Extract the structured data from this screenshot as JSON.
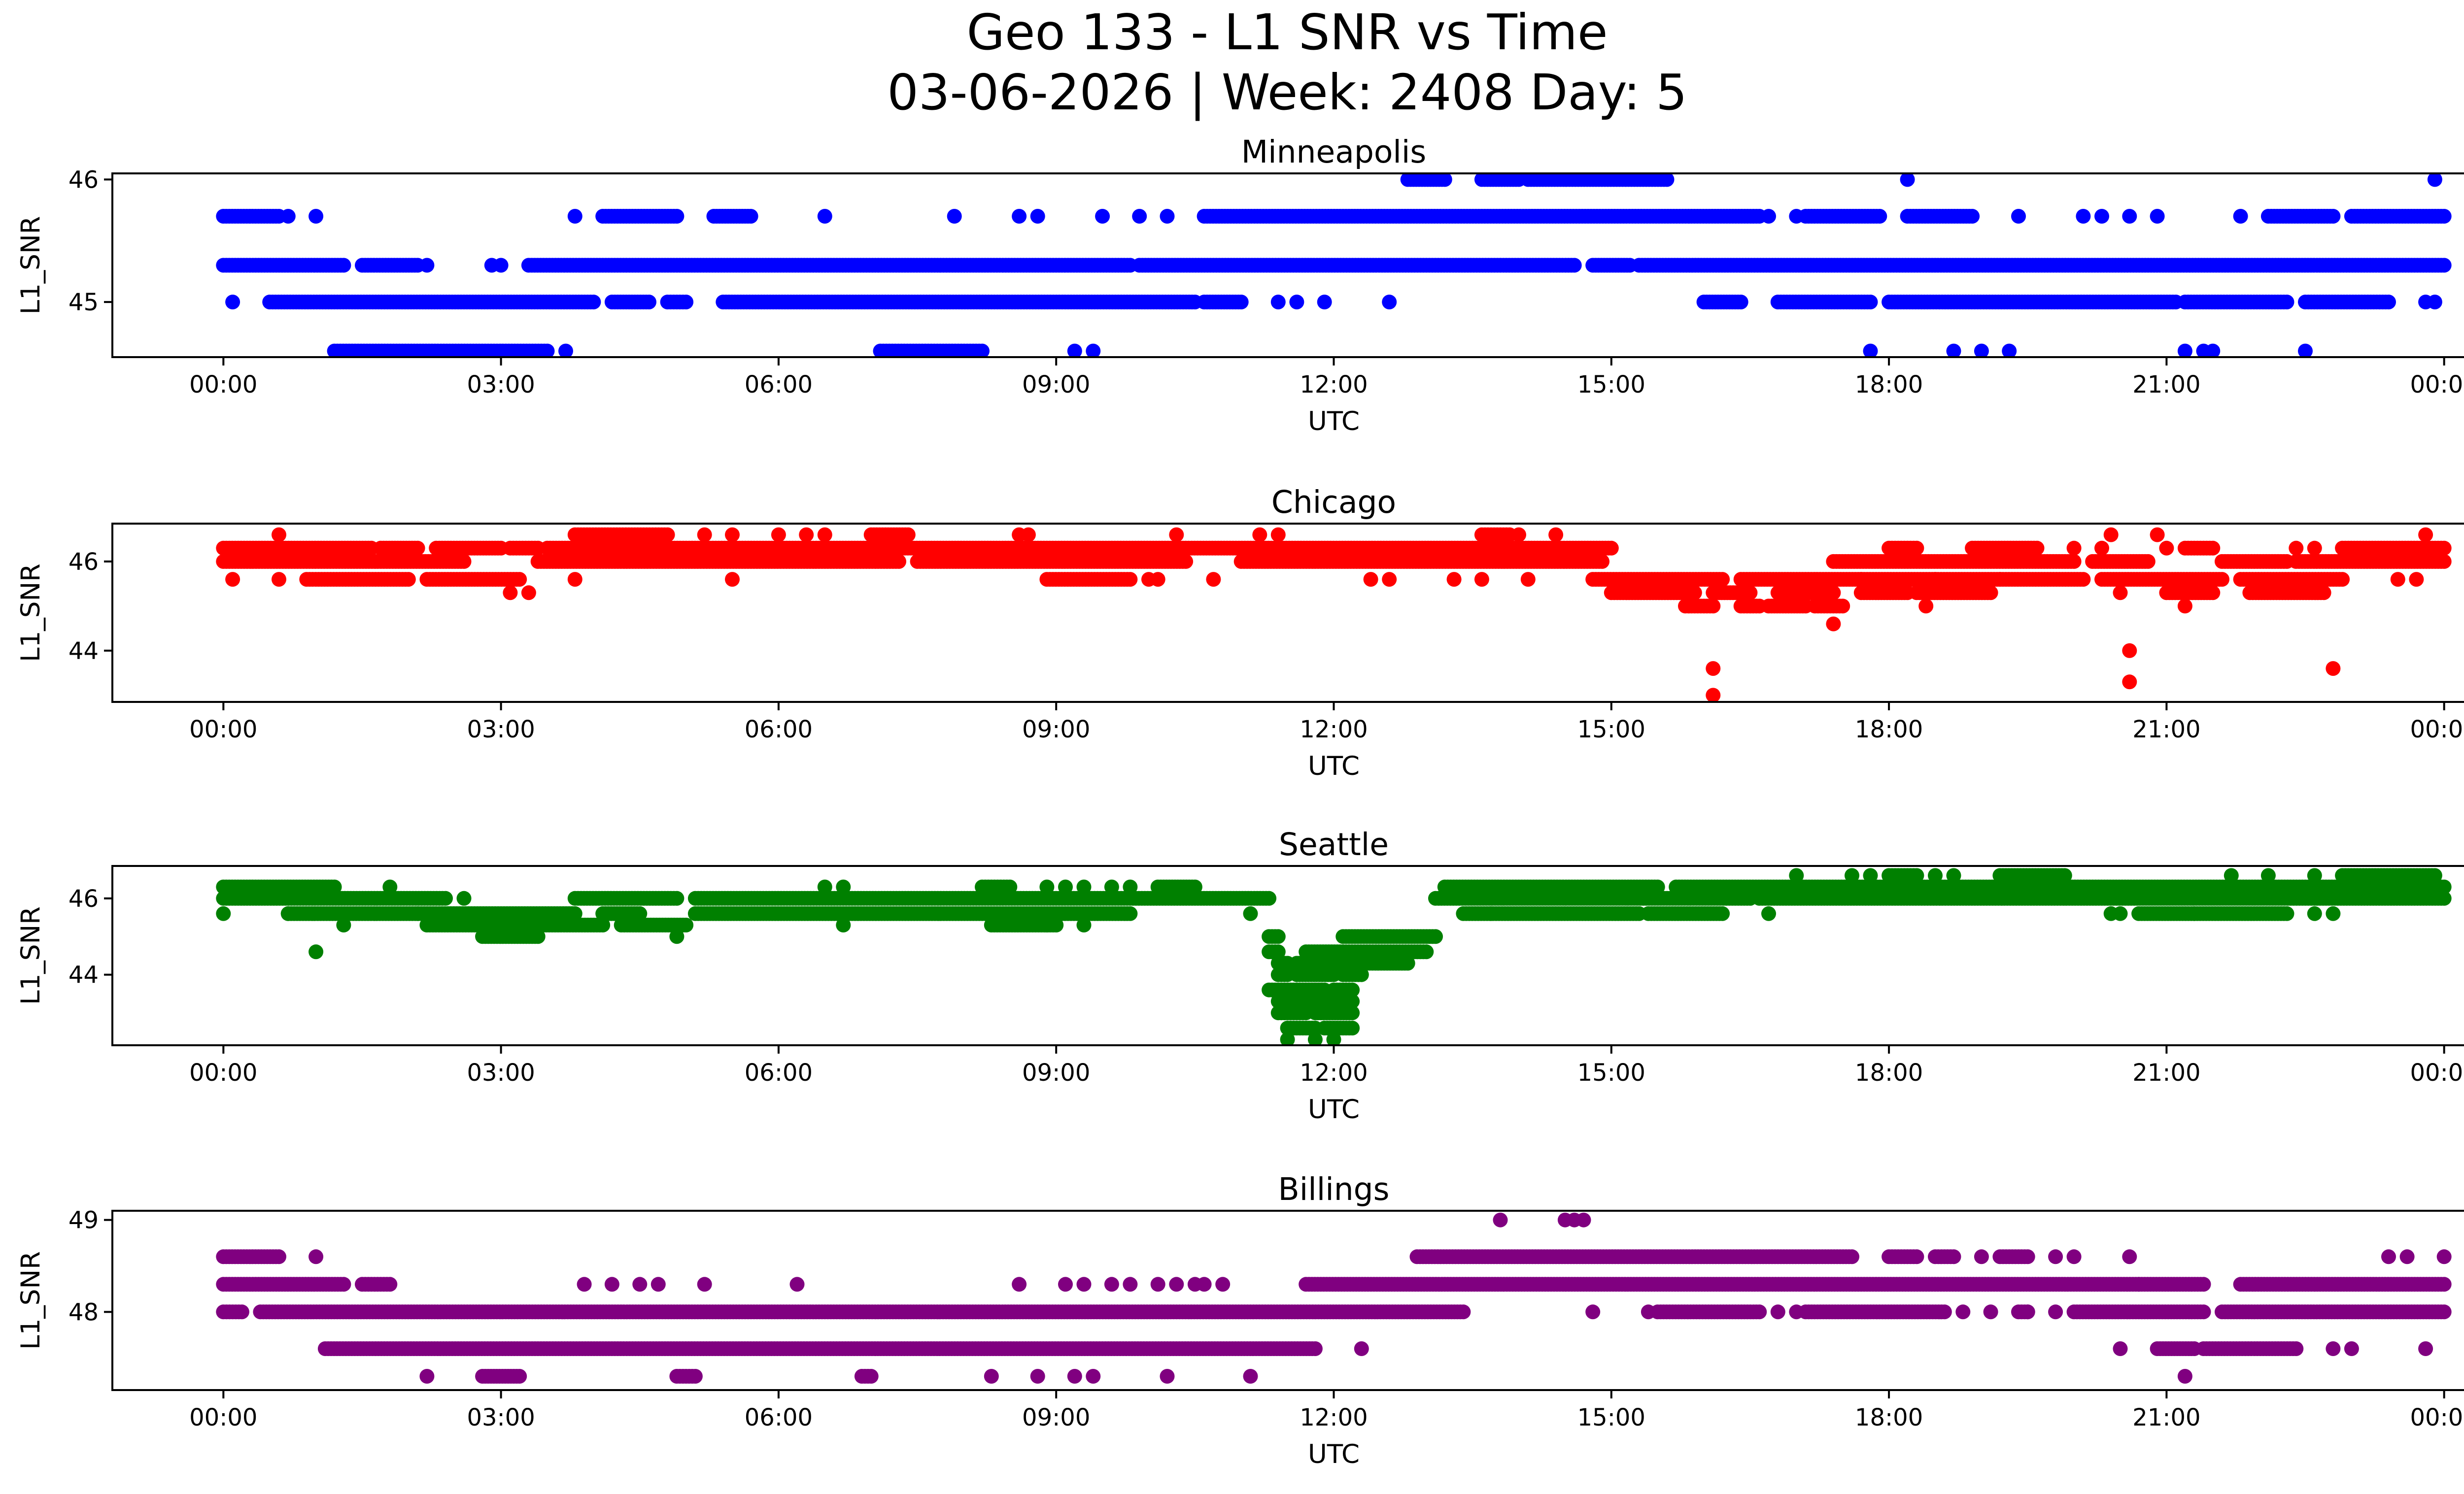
{
  "figure": {
    "title_line1": "Geo 133 - L1 SNR vs Time",
    "title_line2": "03-06-2026 | Week: 2408 Day: 5"
  },
  "chart_data": [
    {
      "type": "scatter",
      "title": "Minneapolis",
      "xlabel": "UTC",
      "ylabel": "L1_SNR",
      "color": "#0000ff",
      "xlim_hours": [
        -1.2,
        25.2
      ],
      "ylim": [
        44.55,
        46.05
      ],
      "x_ticks": [
        "00:00",
        "03:00",
        "06:00",
        "09:00",
        "12:00",
        "15:00",
        "18:00",
        "21:00",
        "00:00"
      ],
      "y_ticks": [
        45,
        46
      ],
      "y_tick_labels": [
        "45",
        "46"
      ],
      "series": [
        {
          "name": "SNR 46.0",
          "y": 46.0,
          "ranges": [
            [
              12.8,
              13.2
            ],
            [
              13.6,
              14.0
            ],
            [
              14.1,
              15.6
            ]
          ],
          "points": [
            18.2,
            23.9
          ]
        },
        {
          "name": "SNR 45.7",
          "y": 45.7,
          "ranges": [
            [
              0.0,
              0.6
            ],
            [
              4.1,
              4.9
            ],
            [
              5.3,
              5.7
            ],
            [
              10.6,
              16.6
            ],
            [
              17.1,
              17.9
            ],
            [
              18.2,
              18.9
            ],
            [
              22.1,
              22.8
            ],
            [
              23.0,
              24.0
            ]
          ],
          "points": [
            0.7,
            1.0,
            3.8,
            6.5,
            7.9,
            8.6,
            8.8,
            9.5,
            9.9,
            10.2,
            16.7,
            17.0,
            19.4,
            20.1,
            20.3,
            20.6,
            20.9,
            21.8
          ]
        },
        {
          "name": "SNR 45.3",
          "y": 45.3,
          "ranges": [
            [
              0.0,
              1.3
            ],
            [
              1.5,
              2.1
            ],
            [
              3.3,
              9.8
            ],
            [
              9.9,
              14.6
            ],
            [
              14.8,
              15.2
            ],
            [
              15.3,
              24.0
            ]
          ],
          "points": [
            2.2,
            2.9,
            3.0
          ]
        },
        {
          "name": "SNR 45.0",
          "y": 45.0,
          "ranges": [
            [
              0.5,
              4.0
            ],
            [
              4.2,
              4.6
            ],
            [
              4.8,
              5.0
            ],
            [
              5.4,
              10.5
            ],
            [
              10.6,
              11.0
            ],
            [
              16.0,
              16.4
            ],
            [
              16.8,
              17.8
            ],
            [
              18.0,
              21.1
            ],
            [
              21.2,
              22.3
            ],
            [
              22.5,
              23.4
            ]
          ],
          "points": [
            0.1,
            11.4,
            11.6,
            11.9,
            12.6,
            23.8,
            23.9
          ]
        },
        {
          "name": "SNR 44.6",
          "y": 44.6,
          "ranges": [
            [
              1.2,
              3.5
            ],
            [
              7.1,
              8.2
            ]
          ],
          "points": [
            3.7,
            9.2,
            9.4,
            17.8,
            18.7,
            19.0,
            19.3,
            21.2,
            21.4,
            21.5,
            22.5
          ]
        }
      ]
    },
    {
      "type": "scatter",
      "title": "Chicago",
      "xlabel": "UTC",
      "ylabel": "L1_SNR",
      "color": "#ff0000",
      "xlim_hours": [
        -1.2,
        25.2
      ],
      "ylim": [
        42.85,
        46.85
      ],
      "x_ticks": [
        "00:00",
        "03:00",
        "06:00",
        "09:00",
        "12:00",
        "15:00",
        "18:00",
        "21:00",
        "00:00"
      ],
      "y_ticks": [
        44,
        46
      ],
      "y_tick_labels": [
        "44",
        "46"
      ],
      "series": [
        {
          "name": "SNR 46.6",
          "y": 46.6,
          "ranges": [
            [
              3.8,
              4.8
            ],
            [
              13.6,
              13.9
            ],
            [
              7.0,
              7.4
            ]
          ],
          "points": [
            0.6,
            5.2,
            5.5,
            6.0,
            6.3,
            6.5,
            8.6,
            8.7,
            10.3,
            11.2,
            11.4,
            14.0,
            14.4,
            20.4,
            20.9,
            23.8
          ]
        },
        {
          "name": "SNR 46.3",
          "y": 46.3,
          "ranges": [
            [
              0.0,
              1.6
            ],
            [
              1.7,
              2.1
            ],
            [
              2.3,
              3.0
            ],
            [
              3.1,
              3.4
            ],
            [
              3.5,
              15.0
            ],
            [
              18.0,
              18.3
            ],
            [
              18.9,
              19.6
            ],
            [
              21.2,
              21.5
            ],
            [
              22.9,
              24.0
            ]
          ],
          "points": [
            20.0,
            20.3,
            21.0,
            22.4,
            22.6
          ]
        },
        {
          "name": "SNR 46.0",
          "y": 46.0,
          "ranges": [
            [
              0.0,
              2.6
            ],
            [
              3.4,
              7.3
            ],
            [
              7.5,
              10.4
            ],
            [
              11.0,
              14.9
            ],
            [
              17.4,
              20.0
            ],
            [
              20.2,
              20.8
            ],
            [
              21.6,
              22.3
            ],
            [
              22.4,
              24.0
            ]
          ],
          "points": []
        },
        {
          "name": "SNR 45.6",
          "y": 45.6,
          "ranges": [
            [
              0.9,
              2.0
            ],
            [
              2.2,
              3.2
            ],
            [
              8.9,
              9.8
            ],
            [
              14.8,
              16.2
            ],
            [
              16.4,
              17.7
            ],
            [
              17.7,
              18.5
            ],
            [
              18.5,
              19.2
            ],
            [
              19.2,
              20.1
            ],
            [
              20.3,
              21.6
            ],
            [
              21.8,
              22.9
            ]
          ],
          "points": [
            0.1,
            0.6,
            3.8,
            5.5,
            10.0,
            10.1,
            10.7,
            12.4,
            12.6,
            13.3,
            13.6,
            14.1,
            23.5,
            23.7
          ]
        },
        {
          "name": "SNR 45.3",
          "y": 45.3,
          "ranges": [
            [
              15.0,
              15.9
            ],
            [
              16.1,
              16.5
            ],
            [
              16.8,
              17.4
            ],
            [
              17.7,
              18.2
            ],
            [
              18.3,
              19.1
            ],
            [
              21.0,
              21.5
            ],
            [
              21.9,
              22.7
            ]
          ],
          "points": [
            3.1,
            3.3,
            20.5
          ]
        },
        {
          "name": "SNR 45.0",
          "y": 45.0,
          "ranges": [
            [
              15.8,
              16.1
            ],
            [
              16.4,
              16.6
            ],
            [
              16.7,
              17.1
            ],
            [
              17.2,
              17.5
            ]
          ],
          "points": [
            18.4,
            21.2
          ]
        },
        {
          "name": "SNR 44.6",
          "y": 44.6,
          "ranges": [],
          "points": [
            17.4
          ]
        },
        {
          "name": "SNR 44.0",
          "y": 44.0,
          "ranges": [],
          "points": [
            20.6
          ]
        },
        {
          "name": "SNR 43.6",
          "y": 43.6,
          "ranges": [],
          "points": [
            16.1,
            22.8
          ]
        },
        {
          "name": "SNR 43.3",
          "y": 43.3,
          "ranges": [],
          "points": [
            20.6
          ]
        },
        {
          "name": "SNR 43.0",
          "y": 43.0,
          "ranges": [],
          "points": [
            16.1
          ]
        }
      ]
    },
    {
      "type": "scatter",
      "title": "Seattle",
      "xlabel": "UTC",
      "ylabel": "L1_SNR",
      "color": "#008000",
      "xlim_hours": [
        -1.2,
        25.2
      ],
      "ylim": [
        42.15,
        46.85
      ],
      "x_ticks": [
        "00:00",
        "03:00",
        "06:00",
        "09:00",
        "12:00",
        "15:00",
        "18:00",
        "21:00",
        "00:00"
      ],
      "y_ticks": [
        44,
        46
      ],
      "y_tick_labels": [
        "44",
        "46"
      ],
      "series": [
        {
          "name": "SNR 46.6",
          "y": 46.6,
          "ranges": [
            [
              18.0,
              18.3
            ],
            [
              19.2,
              19.9
            ],
            [
              22.9,
              23.9
            ]
          ],
          "points": [
            17.0,
            17.6,
            17.8,
            18.5,
            18.7,
            21.7,
            22.1,
            22.6
          ]
        },
        {
          "name": "SNR 46.3",
          "y": 46.3,
          "ranges": [
            [
              0.0,
              1.2
            ],
            [
              8.2,
              8.5
            ],
            [
              10.1,
              10.5
            ],
            [
              13.2,
              15.5
            ],
            [
              15.7,
              24.0
            ]
          ],
          "points": [
            1.8,
            6.5,
            6.7,
            8.9,
            9.1,
            9.3,
            9.6,
            9.8
          ]
        },
        {
          "name": "SNR 46.0",
          "y": 46.0,
          "ranges": [
            [
              0.0,
              2.4
            ],
            [
              3.8,
              4.9
            ],
            [
              5.1,
              11.3
            ],
            [
              13.1,
              16.5
            ],
            [
              16.6,
              24.0
            ]
          ],
          "points": [
            2.6
          ]
        },
        {
          "name": "SNR 45.6",
          "y": 45.6,
          "ranges": [
            [
              0.7,
              3.8
            ],
            [
              4.1,
              4.5
            ],
            [
              5.1,
              9.8
            ],
            [
              13.4,
              15.3
            ],
            [
              15.4,
              16.2
            ],
            [
              20.7,
              21.3
            ],
            [
              21.3,
              22.3
            ]
          ],
          "points": [
            0.0,
            0.7,
            2.1,
            11.1,
            13.7,
            16.7,
            20.4,
            20.5,
            22.6,
            22.8
          ]
        },
        {
          "name": "SNR 45.3",
          "y": 45.3,
          "ranges": [
            [
              2.2,
              4.1
            ],
            [
              4.3,
              5.0
            ],
            [
              8.3,
              9.0
            ]
          ],
          "points": [
            1.3,
            6.7,
            8.9,
            9.3
          ]
        },
        {
          "name": "SNR 45.0",
          "y": 45.0,
          "ranges": [
            [
              2.8,
              3.4
            ],
            [
              11.3,
              11.4
            ],
            [
              12.1,
              13.1
            ]
          ],
          "points": [
            4.9
          ]
        },
        {
          "name": "SNR 44.6",
          "y": 44.6,
          "ranges": [
            [
              11.3,
              11.4
            ],
            [
              11.7,
              12.1
            ],
            [
              12.1,
              13.0
            ]
          ],
          "points": [
            1.0
          ]
        },
        {
          "name": "SNR 44.3",
          "y": 44.3,
          "ranges": [
            [
              11.4,
              11.5
            ],
            [
              11.6,
              12.0
            ],
            [
              12.1,
              12.8
            ]
          ],
          "points": []
        },
        {
          "name": "SNR 44.0",
          "y": 44.0,
          "ranges": [
            [
              11.4,
              11.5
            ],
            [
              11.6,
              12.0
            ],
            [
              12.1,
              12.3
            ]
          ],
          "points": []
        },
        {
          "name": "SNR 43.6",
          "y": 43.6,
          "ranges": [
            [
              11.3,
              11.6
            ],
            [
              11.6,
              11.9
            ],
            [
              12.0,
              12.2
            ]
          ],
          "points": []
        },
        {
          "name": "SNR 43.3",
          "y": 43.3,
          "ranges": [
            [
              11.4,
              11.7
            ],
            [
              11.8,
              12.2
            ]
          ],
          "points": []
        },
        {
          "name": "SNR 43.0",
          "y": 43.0,
          "ranges": [
            [
              11.4,
              11.7
            ],
            [
              11.8,
              12.2
            ]
          ],
          "points": []
        },
        {
          "name": "SNR 42.6",
          "y": 42.6,
          "ranges": [
            [
              11.5,
              11.8
            ],
            [
              11.9,
              12.2
            ]
          ],
          "points": []
        },
        {
          "name": "SNR 42.3",
          "y": 42.3,
          "ranges": [],
          "points": [
            11.5,
            11.8,
            12.0
          ]
        }
      ]
    },
    {
      "type": "scatter",
      "title": "Billings",
      "xlabel": "UTC",
      "ylabel": "L1_SNR",
      "color": "#800080",
      "xlim_hours": [
        -1.2,
        25.2
      ],
      "ylim": [
        47.15,
        49.1
      ],
      "x_ticks": [
        "00:00",
        "03:00",
        "06:00",
        "09:00",
        "12:00",
        "15:00",
        "18:00",
        "21:00",
        "00:00"
      ],
      "y_ticks": [
        48,
        49
      ],
      "y_tick_labels": [
        "48",
        "49"
      ],
      "series": [
        {
          "name": "SNR 49.0",
          "y": 49.0,
          "ranges": [],
          "points": [
            13.8,
            14.5,
            14.6,
            14.7
          ]
        },
        {
          "name": "SNR 48.6",
          "y": 48.6,
          "ranges": [
            [
              0.0,
              0.6
            ],
            [
              12.9,
              17.6
            ],
            [
              18.0,
              18.3
            ],
            [
              18.5,
              18.7
            ],
            [
              19.2,
              19.5
            ]
          ],
          "points": [
            1.0,
            19.0,
            19.8,
            20.0,
            20.6,
            23.4,
            23.6,
            24.0
          ]
        },
        {
          "name": "SNR 48.3",
          "y": 48.3,
          "ranges": [
            [
              0.0,
              1.3
            ],
            [
              1.5,
              1.8
            ],
            [
              11.7,
              20.7
            ],
            [
              20.7,
              21.4
            ],
            [
              21.8,
              24.0
            ]
          ],
          "points": [
            3.9,
            4.2,
            4.5,
            4.7,
            5.2,
            6.2,
            8.6,
            9.1,
            9.3,
            9.6,
            9.8,
            10.1,
            10.3,
            10.5,
            10.6,
            10.8
          ]
        },
        {
          "name": "SNR 48.0",
          "y": 48.0,
          "ranges": [
            [
              0.0,
              0.2
            ],
            [
              0.4,
              13.4
            ],
            [
              15.5,
              16.6
            ],
            [
              17.1,
              18.6
            ],
            [
              19.4,
              19.5
            ],
            [
              20.0,
              21.4
            ],
            [
              21.6,
              24.0
            ]
          ],
          "points": [
            14.8,
            15.4,
            16.8,
            17.0,
            18.8,
            19.1,
            19.5,
            19.8
          ]
        },
        {
          "name": "SNR 47.6",
          "y": 47.6,
          "ranges": [
            [
              1.1,
              11.8
            ],
            [
              20.9,
              21.3
            ],
            [
              21.4,
              22.4
            ]
          ],
          "points": [
            12.3,
            20.5,
            22.8,
            23.0,
            23.8
          ]
        },
        {
          "name": "SNR 47.3",
          "y": 47.3,
          "ranges": [
            [
              2.8,
              3.2
            ],
            [
              4.9,
              5.1
            ],
            [
              6.9,
              7.0
            ]
          ],
          "points": [
            2.2,
            8.3,
            8.8,
            9.2,
            9.4,
            10.2,
            11.1,
            21.2
          ]
        }
      ]
    }
  ]
}
